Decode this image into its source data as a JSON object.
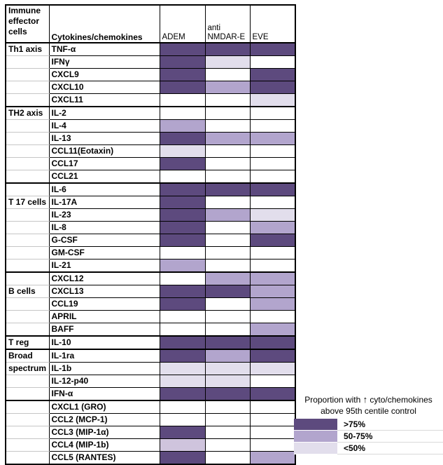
{
  "colors": {
    "high": "#5D4A7E",
    "mid": "#B2A5CD",
    "midlow": "#CFC4DD",
    "low": "#E2DEEC",
    "none": "#FFFFFF",
    "grid_black": "#000000",
    "grid_gray": "#C6C6C6"
  },
  "table": {
    "header": {
      "effector_cells": "Immune effector cells",
      "cytokines": "Cytokines/chemokines"
    },
    "columns": [
      "ADEM",
      "anti NMDAR-E",
      "EVE"
    ]
  },
  "legend": {
    "title_pre": "Proportion  with ",
    "arrow_glyph": "↑",
    "title_post": " cyto/chemokines",
    "title_line2": "above 95th centile control",
    "items": [
      {
        "label": ">75%",
        "shade": "high"
      },
      {
        "label": "50-75%",
        "shade": "mid"
      },
      {
        "label": "<50%",
        "shade": "low"
      }
    ]
  },
  "chart_data": {
    "type": "heatmap",
    "title": "Proportion with raised cytokines/chemokines above 95th centile control",
    "columns": [
      "ADEM",
      "anti NMDAR-E",
      "EVE"
    ],
    "level_labels": {
      "high": ">75%",
      "mid": "50-75%",
      "midlow": "50-75%",
      "low": "<50%",
      "none": "blank"
    },
    "rows": [
      {
        "group": "Th1 axis",
        "new_group": true,
        "label_top": false,
        "cytokine": "TNF-α",
        "levels": [
          "high",
          "high",
          "high"
        ]
      },
      {
        "group": "",
        "new_group": false,
        "label_top": false,
        "cytokine": "IFNγ",
        "levels": [
          "high",
          "low",
          "none"
        ]
      },
      {
        "group": "",
        "new_group": false,
        "label_top": false,
        "cytokine": "CXCL9",
        "levels": [
          "high",
          "none",
          "high"
        ]
      },
      {
        "group": "",
        "new_group": false,
        "label_top": false,
        "cytokine": "CXCL10",
        "levels": [
          "high",
          "mid",
          "high"
        ]
      },
      {
        "group": "",
        "new_group": false,
        "label_top": false,
        "cytokine": "CXCL11",
        "levels": [
          "none",
          "none",
          "low"
        ]
      },
      {
        "group": "TH2 axis",
        "new_group": true,
        "label_top": false,
        "cytokine": "IL-2",
        "levels": [
          "none",
          "none",
          "none"
        ]
      },
      {
        "group": "",
        "new_group": false,
        "label_top": false,
        "cytokine": "IL-4",
        "levels": [
          "mid",
          "none",
          "none"
        ]
      },
      {
        "group": "",
        "new_group": false,
        "label_top": false,
        "cytokine": "IL-13",
        "levels": [
          "high",
          "mid",
          "mid"
        ]
      },
      {
        "group": "",
        "new_group": false,
        "label_top": false,
        "cytokine": "CCL11(Eotaxin)",
        "levels": [
          "low",
          "none",
          "none"
        ]
      },
      {
        "group": "",
        "new_group": false,
        "label_top": false,
        "cytokine": "CCL17",
        "levels": [
          "high",
          "none",
          "none"
        ]
      },
      {
        "group": "",
        "new_group": false,
        "label_top": false,
        "cytokine": "CCL21",
        "levels": [
          "none",
          "none",
          "none"
        ]
      },
      {
        "group": "",
        "new_group": true,
        "label_top": false,
        "cytokine": "IL-6",
        "levels": [
          "high",
          "high",
          "high"
        ]
      },
      {
        "group": "T 17 cells",
        "new_group": false,
        "label_top": true,
        "cytokine": "IL-17A",
        "levels": [
          "high",
          "none",
          "none"
        ]
      },
      {
        "group": "",
        "new_group": false,
        "label_top": false,
        "cytokine": "IL-23",
        "levels": [
          "high",
          "mid",
          "low"
        ]
      },
      {
        "group": "",
        "new_group": false,
        "label_top": false,
        "cytokine": "IL-8",
        "levels": [
          "high",
          "none",
          "mid"
        ]
      },
      {
        "group": "",
        "new_group": false,
        "label_top": false,
        "cytokine": "G-CSF",
        "levels": [
          "high",
          "none",
          "high"
        ]
      },
      {
        "group": "",
        "new_group": false,
        "label_top": false,
        "cytokine": "GM-CSF",
        "levels": [
          "none",
          "none",
          "none"
        ]
      },
      {
        "group": "",
        "new_group": false,
        "label_top": false,
        "cytokine": "IL-21",
        "levels": [
          "mid",
          "none",
          "none"
        ]
      },
      {
        "group": "",
        "new_group": true,
        "label_top": false,
        "cytokine": "CXCL12",
        "levels": [
          "none",
          "mid",
          "mid"
        ]
      },
      {
        "group": "B cells",
        "new_group": false,
        "label_top": true,
        "cytokine": "CXCL13",
        "levels": [
          "high",
          "high",
          "mid"
        ]
      },
      {
        "group": "",
        "new_group": false,
        "label_top": false,
        "cytokine": "CCL19",
        "levels": [
          "high",
          "none",
          "mid"
        ]
      },
      {
        "group": "",
        "new_group": false,
        "label_top": false,
        "cytokine": "APRIL",
        "levels": [
          "none",
          "none",
          "none"
        ]
      },
      {
        "group": "",
        "new_group": false,
        "label_top": false,
        "cytokine": "BAFF",
        "levels": [
          "none",
          "none",
          "mid"
        ]
      },
      {
        "group": "T reg",
        "new_group": true,
        "label_top": false,
        "cytokine": "IL-10",
        "levels": [
          "high",
          "high",
          "high"
        ]
      },
      {
        "group": "Broad",
        "new_group": true,
        "label_top": false,
        "cytokine": "IL-1ra",
        "levels": [
          "high",
          "mid",
          "high"
        ]
      },
      {
        "group": "spectrum",
        "new_group": false,
        "label_top": false,
        "cytokine": "IL-1b",
        "levels": [
          "low",
          "low",
          "low"
        ]
      },
      {
        "group": "",
        "new_group": false,
        "label_top": false,
        "cytokine": "IL-12-p40",
        "levels": [
          "low",
          "low",
          "none"
        ]
      },
      {
        "group": "",
        "new_group": false,
        "label_top": false,
        "cytokine": "IFN-α",
        "levels": [
          "high",
          "high",
          "high"
        ]
      },
      {
        "group": "",
        "new_group": true,
        "label_top": false,
        "cytokine": "CXCL1 (GRO)",
        "levels": [
          "none",
          "none",
          "none"
        ]
      },
      {
        "group": "",
        "new_group": false,
        "label_top": false,
        "cytokine": "CCL2 (MCP-1)",
        "levels": [
          "none",
          "none",
          "none"
        ]
      },
      {
        "group": "",
        "new_group": false,
        "label_top": false,
        "cytokine": "CCL3 (MIP-1α)",
        "levels": [
          "high",
          "none",
          "none"
        ]
      },
      {
        "group": "",
        "new_group": false,
        "label_top": false,
        "cytokine": "CCL4 (MIP-1b)",
        "levels": [
          "midlow",
          "none",
          "none"
        ]
      },
      {
        "group": "",
        "new_group": false,
        "label_top": false,
        "cytokine": "CCL5 (RANTES)",
        "levels": [
          "high",
          "none",
          "mid"
        ]
      }
    ],
    "legend": {
      "title": [
        "Proportion with ↑ cyto/chemokines",
        "above 95th centile control"
      ],
      "entries": [
        ">75%",
        "50-75%",
        "<50%"
      ],
      "position": "bottom-right"
    }
  }
}
